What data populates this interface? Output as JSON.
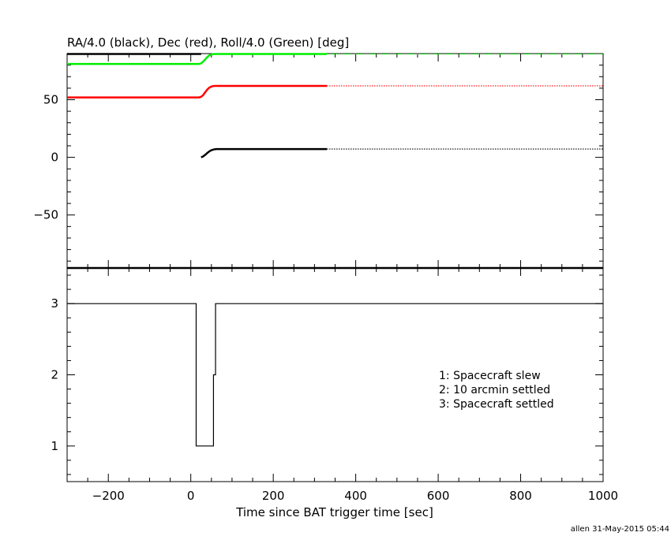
{
  "footer": "allen 31-May-2015 05:44",
  "chart_data": [
    {
      "panel": "top",
      "type": "line",
      "title": "RA/4.0 (black), Dec (red), Roll/4.0 (Green) [deg]",
      "xlabel": "",
      "ylabel": "",
      "xlim": [
        -300,
        1000
      ],
      "ylim": [
        -96,
        90
      ],
      "y_ticks": [
        50,
        0,
        -50
      ],
      "y_tick_labels": [
        "50",
        "0",
        "−50"
      ],
      "grid": false,
      "series": [
        {
          "color": "#000000",
          "x": [
            25,
            30,
            35,
            40,
            45,
            50,
            55,
            60,
            62,
            100,
            200,
            330,
            500,
            700,
            1000
          ],
          "y": [
            0,
            0.8,
            2.2,
            3.8,
            5.2,
            6.2,
            6.8,
            7.1,
            7.2,
            7.2,
            7.2,
            7.2,
            7.2,
            7.2,
            7.2
          ],
          "solid_until": 330
        },
        {
          "color": "#ff0000",
          "x": [
            -300,
            -100,
            0,
            20,
            25,
            30,
            35,
            40,
            45,
            50,
            55,
            60,
            62,
            100,
            200,
            330,
            500,
            700,
            1000
          ],
          "y": [
            52,
            52,
            52,
            52,
            52.5,
            54,
            56.5,
            58.8,
            60.5,
            61.4,
            61.9,
            62,
            62,
            62,
            62,
            62,
            62,
            62,
            62
          ],
          "solid_until": 330
        },
        {
          "color": "#00ee00",
          "x": [
            -300,
            -100,
            0,
            20,
            25,
            30,
            35,
            40,
            45,
            50,
            55,
            60,
            62,
            100,
            200,
            330,
            500,
            700,
            1000
          ],
          "y": [
            81,
            81,
            81,
            81,
            81.5,
            83,
            85,
            87,
            88.5,
            89.3,
            89.6,
            89.7,
            89.7,
            89.7,
            89.7,
            89.7,
            89.7,
            89.7,
            89.7
          ],
          "solid_until": 330
        },
        {
          "color": "#000000",
          "x": [
            -300,
            25
          ],
          "y": [
            89.7,
            89.7
          ],
          "solid_until": 1000
        }
      ]
    },
    {
      "panel": "bottom",
      "type": "line",
      "xlabel": "Time since BAT trigger time [sec]",
      "ylabel": "",
      "xlim": [
        -300,
        1000
      ],
      "ylim": [
        0.5,
        3.5
      ],
      "x_ticks": [
        -200,
        0,
        200,
        400,
        600,
        800,
        1000
      ],
      "x_tick_labels": [
        "−200",
        "0",
        "200",
        "400",
        "600",
        "800",
        "1000"
      ],
      "y_ticks": [
        3,
        2,
        1
      ],
      "y_tick_labels": [
        "3",
        "2",
        "1"
      ],
      "grid": false,
      "series": [
        {
          "color": "#000000",
          "step": true,
          "x": [
            -300,
            13,
            13,
            55,
            55,
            60,
            60,
            1000
          ],
          "y": [
            3,
            3,
            1,
            1,
            2,
            2,
            3,
            3
          ]
        }
      ],
      "annotations": [
        "1: Spacecraft slew",
        "2: 10 arcmin settled",
        "3: Spacecraft settled"
      ]
    }
  ]
}
